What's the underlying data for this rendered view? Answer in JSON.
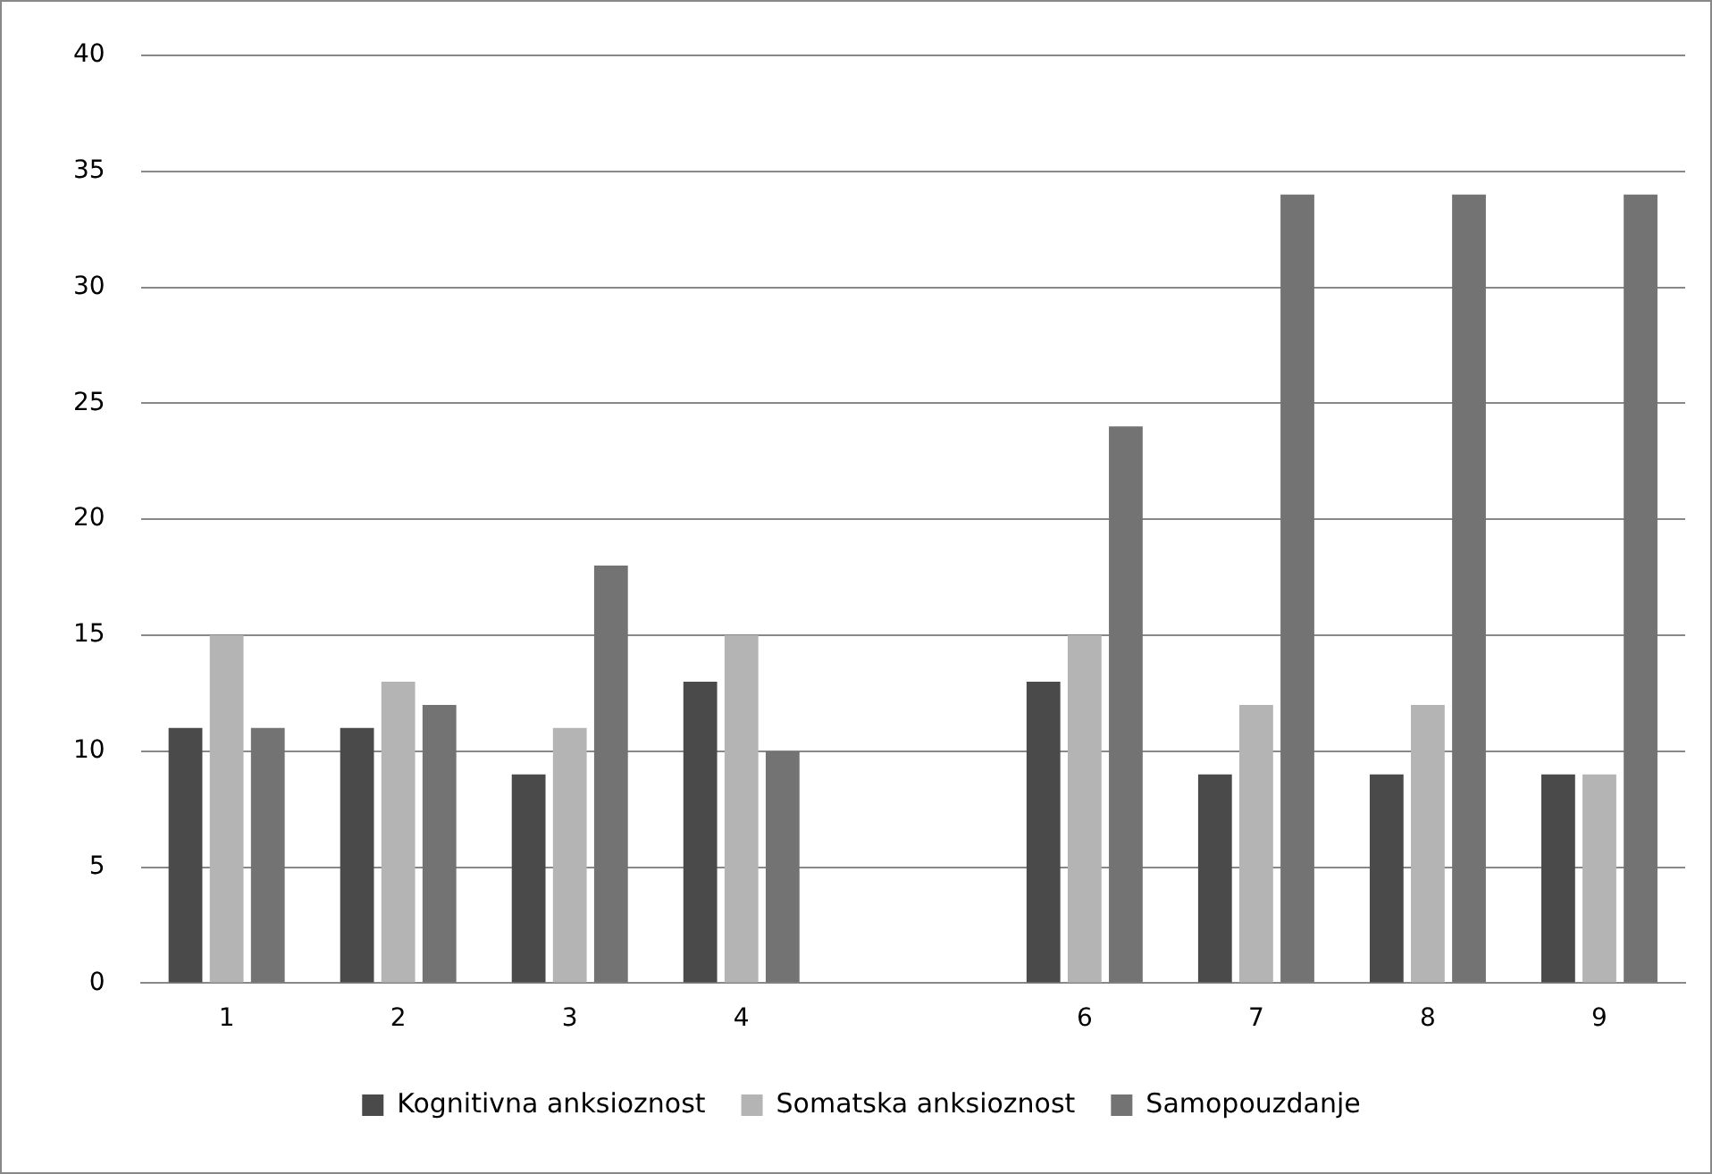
{
  "chart_data": {
    "type": "bar",
    "categories": [
      "1",
      "2",
      "3",
      "4",
      null,
      "6",
      "7",
      "8",
      "9"
    ],
    "series": [
      {
        "name": "Kognitivna anksioznost",
        "color": "#4a4a4a",
        "values": [
          11,
          11,
          9,
          13,
          null,
          13,
          9,
          9,
          9
        ]
      },
      {
        "name": "Somatska anksioznost",
        "color": "#b4b4b4",
        "values": [
          15,
          13,
          11,
          15,
          null,
          15,
          12,
          12,
          9
        ]
      },
      {
        "name": "Samopouzdanje",
        "color": "#737373",
        "values": [
          11,
          12,
          18,
          10,
          null,
          24,
          34,
          34,
          34
        ]
      }
    ],
    "ylim": [
      0,
      40
    ],
    "yticks": [
      0,
      5,
      10,
      15,
      20,
      25,
      30,
      35,
      40
    ],
    "grid": "y",
    "legend": "bottom"
  }
}
